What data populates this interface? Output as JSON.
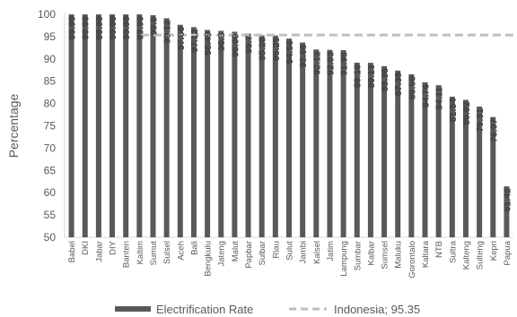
{
  "chart_data": {
    "type": "bar",
    "ylabel": "Percentage",
    "ylim": [
      50,
      100
    ],
    "yticks": [
      50,
      55,
      60,
      65,
      70,
      75,
      80,
      85,
      90,
      95,
      100
    ],
    "grid": false,
    "legend_position": "bottom",
    "categories": [
      "Babel",
      "DKI",
      "Jabar",
      "DIY",
      "Banten",
      "Kaltim",
      "Sumut",
      "Sulsel",
      "Aceh",
      "Bali",
      "Bengkulu",
      "Jateng",
      "Malut",
      "Papbar",
      "Sulbar",
      "Riau",
      "Sulut",
      "Jambi",
      "Kalsel",
      "Jatim",
      "Lampung",
      "Sumbar",
      "Kalbar",
      "Sumsel",
      "Maluku",
      "Gorontalo",
      "Kaltara",
      "NTB",
      "Sultra",
      "Kalteng",
      "Sulteng",
      "Kepri",
      "Papua"
    ],
    "series": [
      {
        "name": "Electrification Rate",
        "values": [
          99.99,
          99.99,
          99.99,
          99.99,
          99.99,
          99.99,
          99.8,
          99.12,
          97.66,
          97.12,
          96.49,
          96.3,
          96.09,
          95.7,
          95.28,
          95.25,
          94.56,
          93.68,
          92.12,
          92.03,
          91.96,
          89.16,
          89.13,
          88.36,
          87.39,
          86.56,
          84.76,
          84.11,
          81.54,
          80.82,
          79.31,
          76.97,
          61.42
        ],
        "labels": [
          "99.99",
          "99.99",
          "99.99",
          "99.99",
          "99.99",
          "99.99",
          "99.8",
          "99.12",
          "97.66",
          "97.12",
          "96.49",
          "96.3",
          "96.09",
          "95.7",
          "95.28",
          "95.25",
          "94.56",
          "93.68",
          "92.12",
          "92.03",
          "91.96",
          "89.16",
          "89.13",
          "88.36",
          "87.39",
          "86.56",
          "84.76",
          "84.11",
          "81.54",
          "80.82",
          "79.31",
          "76.97",
          "61.42"
        ],
        "color": "#595959"
      }
    ],
    "reference_line": {
      "name": "Indonesia; 95.35",
      "value": 95.35,
      "color": "#bfbfbf"
    },
    "legend": [
      {
        "name": "Electrification Rate",
        "style": "bar"
      },
      {
        "name": "Indonesia; 95.35",
        "style": "dashed-line"
      }
    ]
  }
}
